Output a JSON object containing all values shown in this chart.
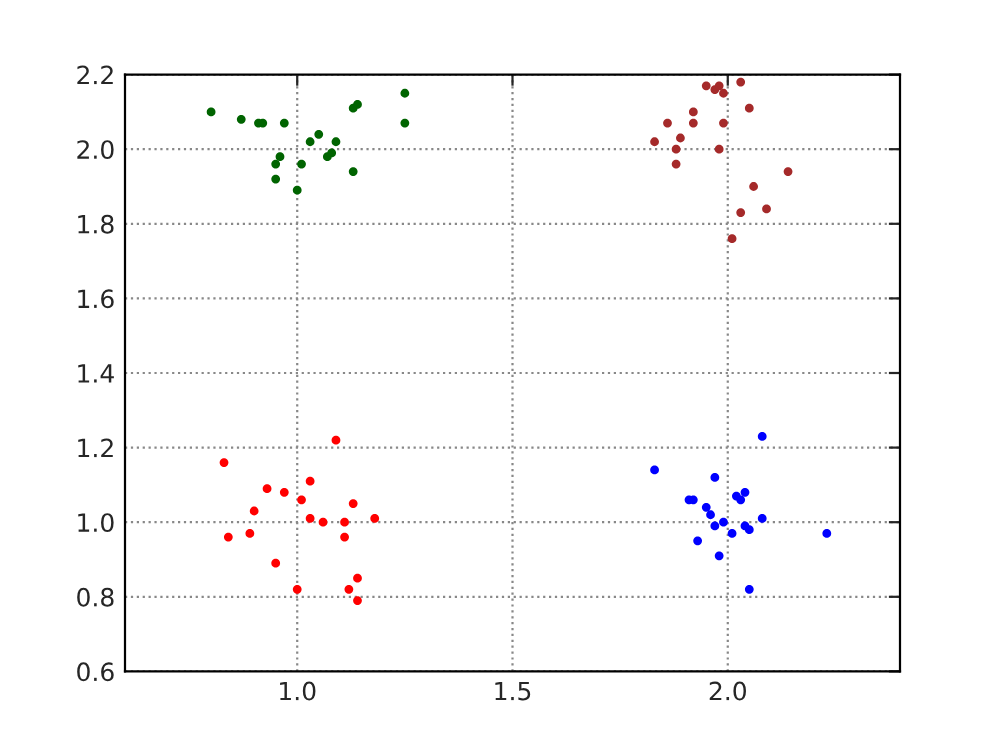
{
  "chart_data": {
    "type": "scatter",
    "xlim": [
      0.6,
      2.4
    ],
    "ylim": [
      0.6,
      2.2
    ],
    "xticks": [
      {
        "value": 1.0,
        "label": "1.0"
      },
      {
        "value": 1.5,
        "label": "1.5"
      },
      {
        "value": 2.0,
        "label": "2.0"
      }
    ],
    "yticks": [
      {
        "value": 0.6,
        "label": "0.6"
      },
      {
        "value": 0.8,
        "label": "0.8"
      },
      {
        "value": 1.0,
        "label": "1.0"
      },
      {
        "value": 1.2,
        "label": "1.2"
      },
      {
        "value": 1.4,
        "label": "1.4"
      },
      {
        "value": 1.6,
        "label": "1.6"
      },
      {
        "value": 1.8,
        "label": "1.8"
      },
      {
        "value": 2.0,
        "label": "2.0"
      },
      {
        "value": 2.2,
        "label": "2.2"
      }
    ],
    "grid": true,
    "marker": "circle",
    "legend": false,
    "series": [
      {
        "color": "#006400",
        "x": [
          0.8,
          0.87,
          0.91,
          0.92,
          0.97,
          1.25,
          1.25,
          1.13,
          1.14,
          1.03,
          1.05,
          1.09,
          1.07,
          1.08,
          0.96,
          0.95,
          1.01,
          0.95,
          1.13,
          1.0
        ],
        "values": [
          2.1,
          2.08,
          2.07,
          2.07,
          2.07,
          2.15,
          2.07,
          2.11,
          2.12,
          2.02,
          2.04,
          2.02,
          1.98,
          1.99,
          1.98,
          1.96,
          1.96,
          1.92,
          1.94,
          1.89
        ]
      },
      {
        "color": "#a52a2a",
        "x": [
          1.95,
          1.97,
          1.98,
          1.99,
          2.03,
          2.05,
          1.92,
          1.86,
          1.92,
          1.99,
          1.83,
          1.89,
          1.88,
          1.98,
          1.88,
          2.14,
          2.06,
          2.03,
          2.09,
          2.01
        ],
        "values": [
          2.17,
          2.16,
          2.17,
          2.15,
          2.18,
          2.11,
          2.1,
          2.07,
          2.07,
          2.07,
          2.02,
          2.03,
          2.0,
          2.0,
          1.96,
          1.94,
          1.9,
          1.83,
          1.84,
          1.76
        ]
      },
      {
        "color": "#ff0000",
        "x": [
          1.09,
          0.83,
          0.93,
          0.97,
          1.03,
          1.01,
          0.9,
          1.13,
          1.03,
          1.06,
          1.11,
          1.18,
          0.84,
          0.89,
          1.11,
          0.95,
          1.0,
          1.14,
          1.12,
          1.14
        ],
        "values": [
          1.22,
          1.16,
          1.09,
          1.08,
          1.11,
          1.06,
          1.03,
          1.05,
          1.01,
          1.0,
          1.0,
          1.01,
          0.96,
          0.97,
          0.96,
          0.89,
          0.82,
          0.85,
          0.82,
          0.79
        ]
      },
      {
        "color": "#0000ff",
        "x": [
          2.08,
          1.83,
          1.97,
          1.91,
          1.92,
          2.02,
          2.03,
          2.04,
          1.95,
          1.96,
          1.97,
          1.99,
          2.01,
          2.04,
          2.05,
          2.08,
          2.23,
          1.93,
          1.98,
          2.05
        ],
        "values": [
          1.23,
          1.14,
          1.12,
          1.06,
          1.06,
          1.07,
          1.06,
          1.08,
          1.04,
          1.02,
          0.99,
          1.0,
          0.97,
          0.99,
          0.98,
          1.01,
          0.97,
          0.95,
          0.91,
          0.82
        ]
      }
    ]
  }
}
